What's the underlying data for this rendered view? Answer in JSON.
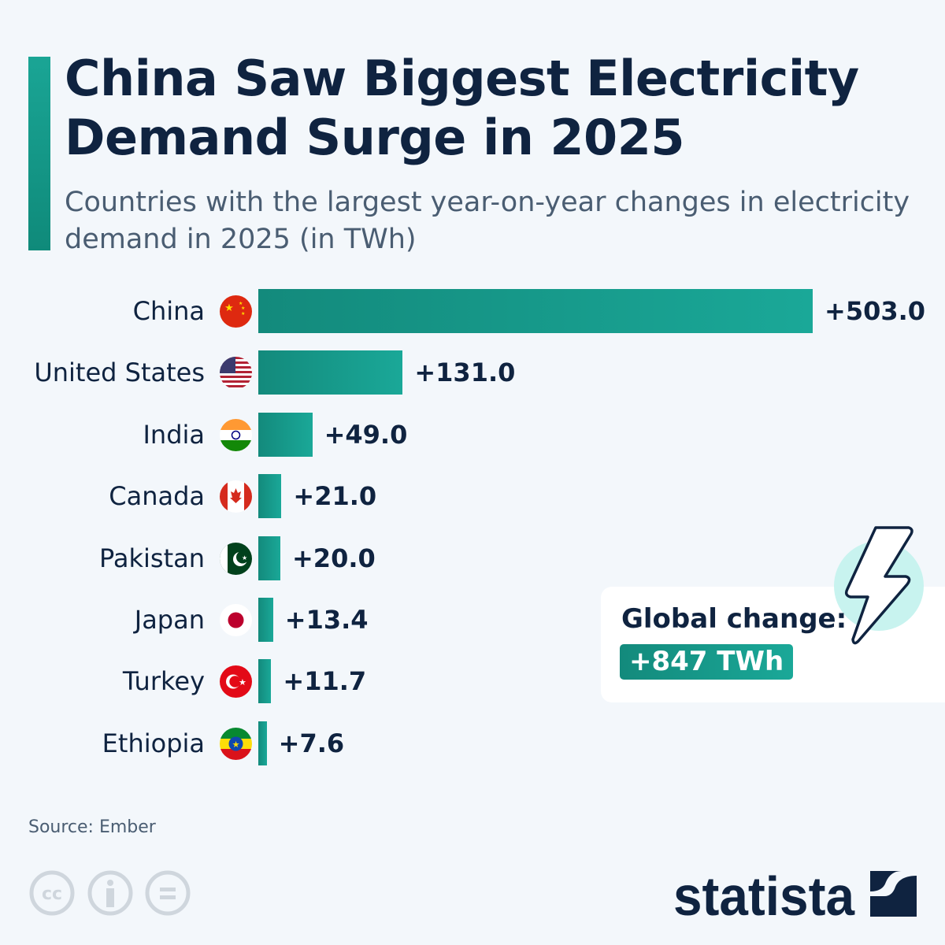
{
  "title": "China Saw Biggest Electricity Demand Surge in 2025",
  "subtitle": "Countries with the largest year-on-year changes in electricity demand in 2025 (in TWh)",
  "source": "Source: Ember",
  "brand": "statista",
  "colors": {
    "bar": "#1aa595",
    "text": "#0f2340",
    "background": "#f3f7fb"
  },
  "chart_data": {
    "type": "bar",
    "orientation": "horizontal",
    "title": "China Saw Biggest Electricity Demand Surge in 2025",
    "subtitle": "Countries with the largest year-on-year changes in electricity demand in 2025 (in TWh)",
    "categories": [
      "China",
      "United States",
      "India",
      "Canada",
      "Pakistan",
      "Japan",
      "Turkey",
      "Ethiopia"
    ],
    "values": [
      503.0,
      131.0,
      49.0,
      21.0,
      20.0,
      13.4,
      11.7,
      7.6
    ],
    "labels": [
      "+503.0",
      "+131.0",
      "+49.0",
      "+21.0",
      "+20.0",
      "+13.4",
      "+11.7",
      "+7.6"
    ],
    "flags": [
      "china-flag",
      "us-flag",
      "india-flag",
      "canada-flag",
      "pakistan-flag",
      "japan-flag",
      "turkey-flag",
      "ethiopia-flag"
    ],
    "grid": false
  },
  "callout": {
    "label": "Global change:",
    "value": "+847 TWh",
    "icon": "lightning-bolt-icon"
  }
}
